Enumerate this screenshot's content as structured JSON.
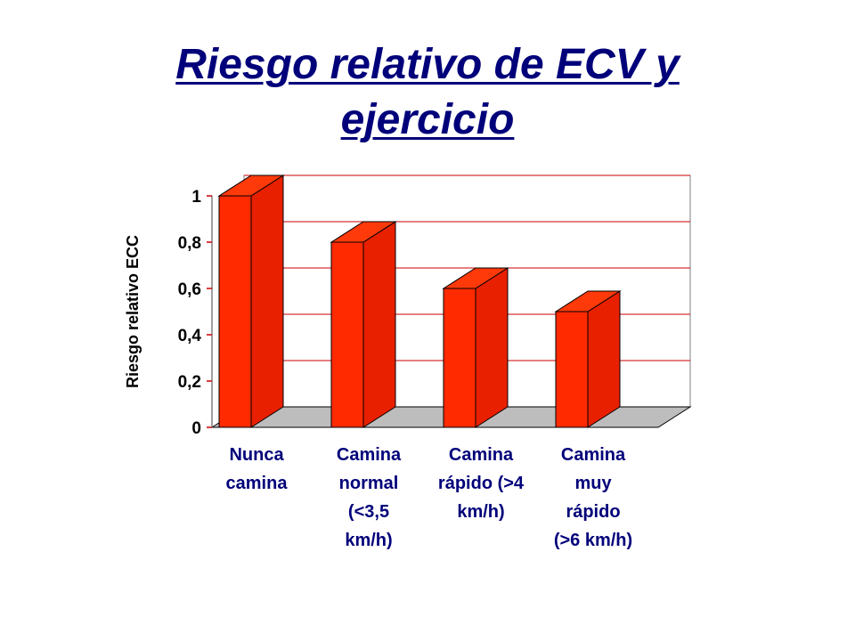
{
  "chart_data": {
    "type": "bar",
    "title_lines": [
      "Riesgo relativo de ECV y",
      "ejercicio"
    ],
    "ylabel": "Riesgo relativo ECC",
    "xlabel": "",
    "ylim": [
      0,
      1
    ],
    "yticks": [
      "0",
      "0,2",
      "0,4",
      "0,6",
      "0,8",
      "1"
    ],
    "categories": [
      [
        "Nunca",
        "camina"
      ],
      [
        "Camina",
        "normal",
        "(<3,5",
        "km/h)"
      ],
      [
        "Camina",
        "rápido (>4",
        "km/h)"
      ],
      [
        "Camina",
        "muy",
        "rápido",
        "(>6 km/h)"
      ]
    ],
    "values": [
      1.0,
      0.8,
      0.6,
      0.5
    ],
    "grid": true,
    "three_d": true,
    "legend": "none"
  },
  "colors": {
    "title": "#00007a",
    "category_labels": "#00007a",
    "bar_front": "#ff2a00",
    "bar_side": "#e82000",
    "bar_top": "#ff3a0a",
    "grid": "#cc0000",
    "floor": "#bdbdbd",
    "outline": "#000000"
  }
}
